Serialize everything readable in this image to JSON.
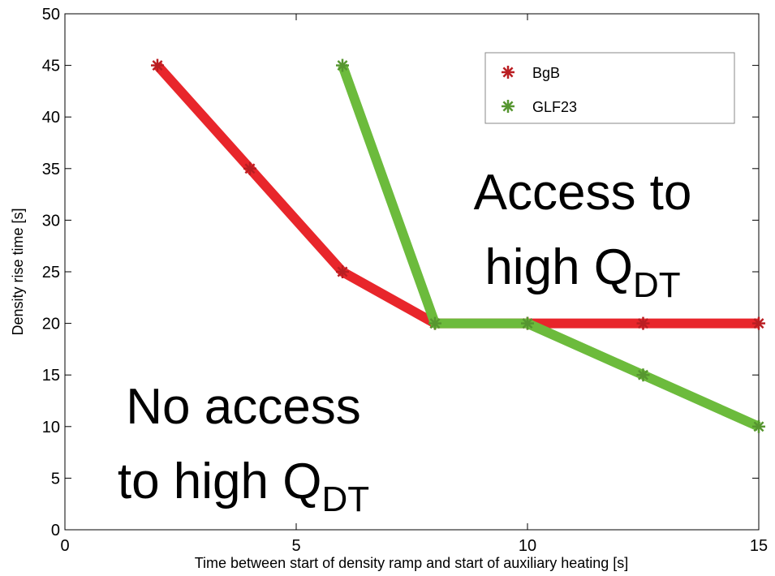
{
  "chart_data": {
    "type": "line",
    "xlabel": "Time between start of density ramp and start of auxiliary heating [s]",
    "ylabel": "Density rise time [s]",
    "xlim": [
      0,
      15
    ],
    "xticks": [
      0,
      5,
      10,
      15
    ],
    "ylim": [
      0,
      50
    ],
    "yticks": [
      0,
      5,
      10,
      15,
      20,
      25,
      30,
      35,
      40,
      45,
      50
    ],
    "legend": "upper right",
    "series": [
      {
        "name": "BgB",
        "color": "#e8262b",
        "x": [
          2,
          4,
          6,
          8,
          10,
          12.5,
          15
        ],
        "values": [
          45,
          35,
          25,
          20,
          20,
          20,
          20
        ]
      },
      {
        "name": "GLF23",
        "color": "#6cbb3c",
        "x": [
          6,
          8,
          10,
          12.5,
          15
        ],
        "values": [
          45,
          20,
          20,
          15,
          10
        ]
      }
    ],
    "annotations": [
      {
        "lines": [
          "Access to",
          "high Q"
        ],
        "subscript": "DT"
      },
      {
        "lines": [
          "No access",
          "to high Q"
        ],
        "subscript": "DT"
      }
    ]
  }
}
